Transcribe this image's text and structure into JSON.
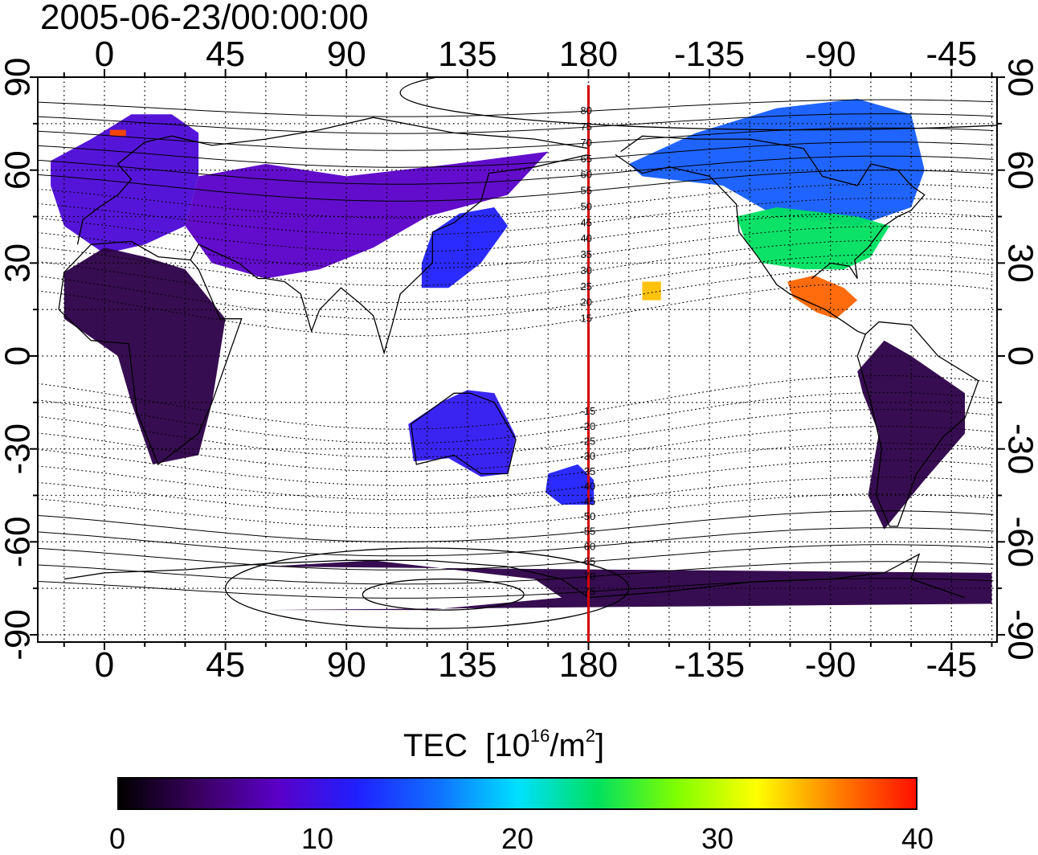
{
  "title": "2005-06-23/00:00:00",
  "map": {
    "projection": "equirectangular",
    "central_longitude": 180,
    "lon_ticks": [
      {
        "value": 0,
        "label": "0"
      },
      {
        "value": 45,
        "label": "45"
      },
      {
        "value": 90,
        "label": "90"
      },
      {
        "value": 135,
        "label": "135"
      },
      {
        "value": 180,
        "label": "180"
      },
      {
        "value": 225,
        "label": "-135"
      },
      {
        "value": 270,
        "label": "-90"
      },
      {
        "value": 315,
        "label": "-45"
      }
    ],
    "lat_ticks": [
      {
        "value": 90,
        "label": "90"
      },
      {
        "value": 60,
        "label": "60"
      },
      {
        "value": 30,
        "label": "30"
      },
      {
        "value": 0,
        "label": "0"
      },
      {
        "value": -30,
        "label": "-30"
      },
      {
        "value": -60,
        "label": "-60"
      },
      {
        "value": -90,
        "label": "-90"
      }
    ],
    "grid": "dotted every 15 degrees",
    "meridian_line_color": "#d40000",
    "magnetic_contour_labels": [
      "80",
      "75",
      "70",
      "65",
      "60",
      "55",
      "50",
      "45",
      "40",
      "35",
      "30",
      "25",
      "20",
      "15",
      "-15",
      "-20",
      "-25",
      "-30",
      "-35",
      "-40",
      "-45",
      "-50",
      "-55",
      "-60",
      "-65",
      "-70",
      "-75"
    ]
  },
  "colorbar": {
    "title": "TEC",
    "unit_prefix": "[10",
    "unit_exp1": "16",
    "unit_mid": "/m",
    "unit_exp2": "2",
    "unit_suffix": "]",
    "min": 0,
    "max": 40,
    "ticks": [
      "0",
      "10",
      "20",
      "30",
      "40"
    ],
    "colormap": [
      "#000000",
      "#3a0060",
      "#5a00c8",
      "#2020ff",
      "#1070ff",
      "#00e0ff",
      "#00e060",
      "#80ff00",
      "#ffff00",
      "#ff8000",
      "#ff1000"
    ]
  },
  "tec_regions": [
    {
      "region": "Europe",
      "value": 9
    },
    {
      "region": "North Atlantic patch",
      "value": 38
    },
    {
      "region": "Asia",
      "value": 8
    },
    {
      "region": "Japan and East Asia",
      "value": 12
    },
    {
      "region": "North America (north)",
      "value": 15
    },
    {
      "region": "North America (south)",
      "value": 24
    },
    {
      "region": "Mexico and Caribbean",
      "value": 37
    },
    {
      "region": "Hawaii",
      "value": 34
    },
    {
      "region": "South America",
      "value": 3
    },
    {
      "region": "Africa",
      "value": 3
    },
    {
      "region": "Australia",
      "value": 11
    },
    {
      "region": "New Zealand",
      "value": 12
    },
    {
      "region": "Antarctica",
      "value": 3
    }
  ]
}
